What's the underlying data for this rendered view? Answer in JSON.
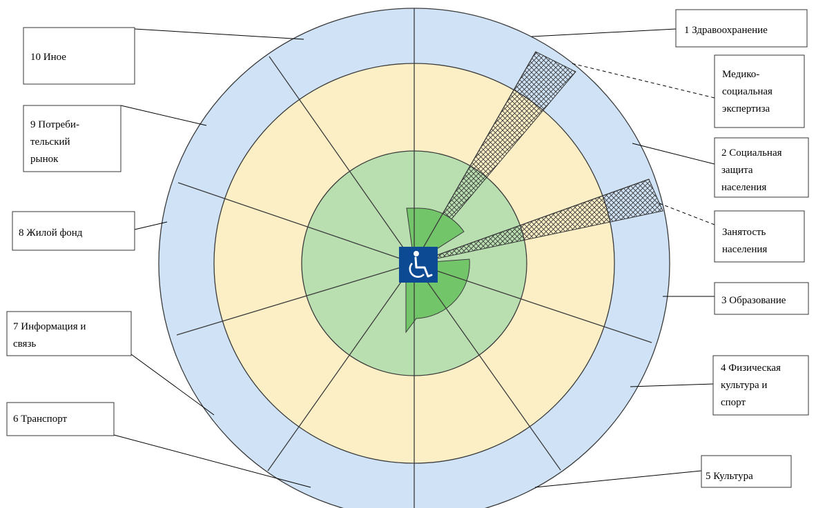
{
  "diagram": {
    "center_icon": "wheelchair-accessibility-icon",
    "colors": {
      "outer_ring": "#cfe2f6",
      "middle_ring": "#fcefc6",
      "inner_ring": "#b9dfb1",
      "core_wedge": "#72c569",
      "icon_background": "#0c4a94",
      "lines": "#3a3a3a"
    },
    "sectors": [
      {
        "label": "1 Здравоохранение"
      },
      {
        "label": "2 Социальная защита населения",
        "lines": [
          "2 Социальная",
          "защита",
          "населения"
        ]
      },
      {
        "label": "3 Образование"
      },
      {
        "label": "4 Физическая культура и спорт",
        "lines": [
          "4 Физическая",
          "культура и",
          "спорт"
        ]
      },
      {
        "label": "5 Культура"
      },
      {
        "label": "6 Транспорт"
      },
      {
        "label": "7 Информация и связь",
        "lines": [
          "7 Информация и",
          "связь"
        ]
      },
      {
        "label": "8 Жилой фонд"
      },
      {
        "label": "9 Потреби-тельский рынок",
        "lines": [
          "9 Потреби-",
          "тельский",
          "рынок"
        ]
      },
      {
        "label": "10 Иное"
      }
    ],
    "subsectors": [
      {
        "label": "Медико-социальная экспертиза",
        "lines": [
          "Медико-",
          "социальная",
          "экспертиза"
        ]
      },
      {
        "label": "Занятость населения",
        "lines": [
          "Занятость",
          "населения"
        ]
      }
    ]
  }
}
